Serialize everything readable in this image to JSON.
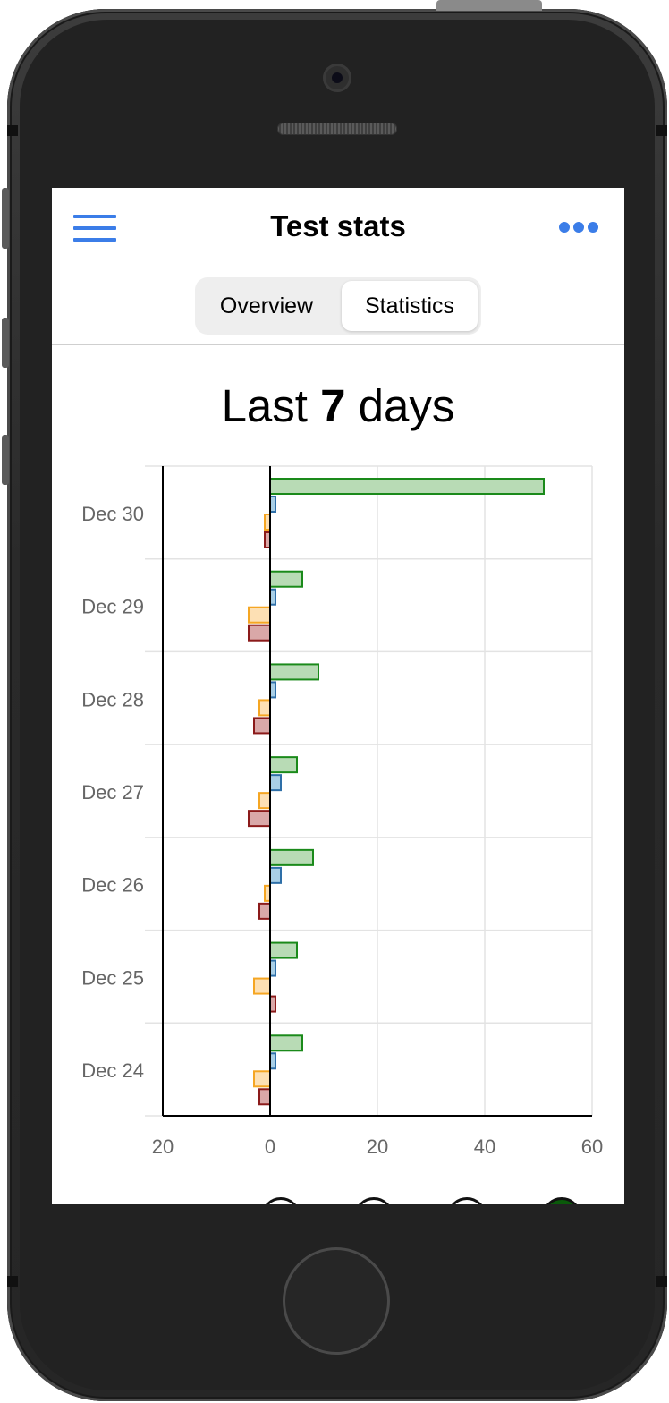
{
  "nav": {
    "title": "Test stats",
    "menu_icon": "hamburger-menu-icon",
    "more_icon": "more-dots-icon",
    "accent_color": "#3b7de8"
  },
  "tabs": [
    {
      "label": "Overview",
      "active": false
    },
    {
      "label": "Statistics",
      "active": true
    }
  ],
  "heading": {
    "prefix": "Last ",
    "days": "7",
    "suffix": " days"
  },
  "chart_data": {
    "type": "bar",
    "orientation": "horizontal",
    "categories": [
      "Dec 30",
      "Dec 29",
      "Dec 28",
      "Dec 27",
      "Dec 26",
      "Dec 25",
      "Dec 24"
    ],
    "series": [
      {
        "values": [
          51,
          6,
          9,
          5,
          8,
          5,
          6
        ],
        "fill": "#b8dbb5",
        "stroke": "#1a8a1a"
      },
      {
        "values": [
          1,
          1,
          1,
          2,
          2,
          1,
          1
        ],
        "fill": "#a9cfe6",
        "stroke": "#2e6fa8"
      },
      {
        "values": [
          -1,
          -4,
          -2,
          -2,
          -1,
          -3,
          -3
        ],
        "fill": "#fde0b4",
        "stroke": "#f5a623"
      },
      {
        "values": [
          -1,
          -4,
          -3,
          -4,
          -2,
          1,
          -2
        ],
        "fill": "#d9a8a8",
        "stroke": "#8b1a1a"
      }
    ],
    "xlim": [
      -20,
      60
    ],
    "xticks": [
      -20,
      0,
      20,
      40,
      60
    ],
    "xtick_labels": [
      "20",
      "0",
      "20",
      "40",
      "60"
    ],
    "grid": true
  }
}
